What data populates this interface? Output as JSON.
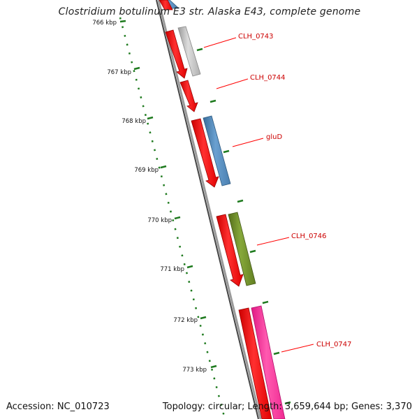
{
  "title": "Clostridium botulinum E3 str. Alaska E43, complete genome",
  "accession": "Accession: NC_010723",
  "topology": "Topology: circular; Length: 3,659,644 bp; Genes: 3,370",
  "ruler_ticks": [
    "766 kbp",
    "767 kbp",
    "768 kbp",
    "769 kbp",
    "770 kbp",
    "771 kbp",
    "772 kbp",
    "773 kbp"
  ],
  "gene_labels": [
    "CLH_0743",
    "CLH_0744",
    "gluD",
    "CLH_0746",
    "CLH_0747"
  ],
  "colors": {
    "cds_forward": "#ff0000",
    "gene_grey": "#bbbbbb",
    "gene_blue": "#4f86bb",
    "gene_green": "#6b8e23",
    "gene_pink": "#ff2f9a",
    "ruler_green": "#1e7a1e",
    "backbone": "#777777",
    "label_red": "#cc0000"
  }
}
